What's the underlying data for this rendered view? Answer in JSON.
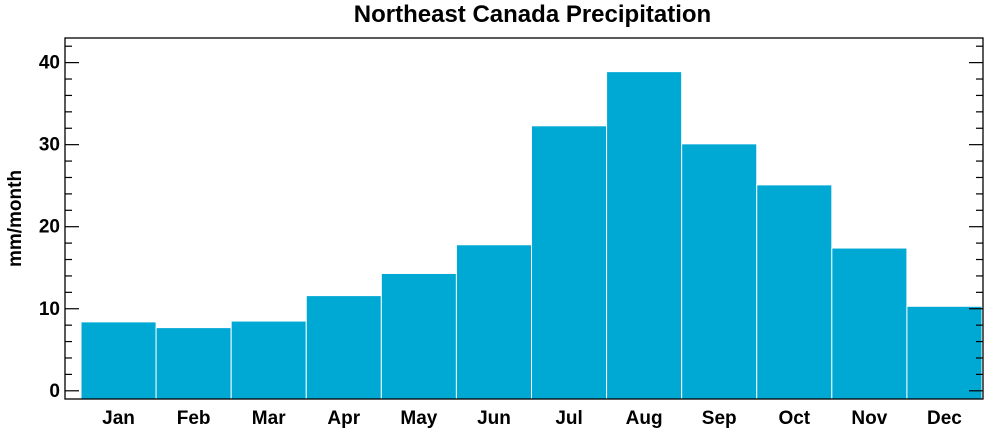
{
  "chart_data": {
    "type": "bar",
    "title": "Northeast Canada Precipitation",
    "xlabel": "",
    "ylabel": "mm/month",
    "categories": [
      "Jan",
      "Feb",
      "Mar",
      "Apr",
      "May",
      "Jun",
      "Jul",
      "Aug",
      "Sep",
      "Oct",
      "Nov",
      "Dec"
    ],
    "values": [
      8.4,
      7.7,
      8.5,
      11.6,
      14.3,
      17.8,
      32.3,
      38.9,
      30.1,
      25.1,
      17.4,
      10.3
    ],
    "ylim": [
      -1,
      43
    ],
    "yticks": [
      0,
      10,
      20,
      30,
      40
    ],
    "grid": false,
    "bar_color": "#00a8d4"
  }
}
